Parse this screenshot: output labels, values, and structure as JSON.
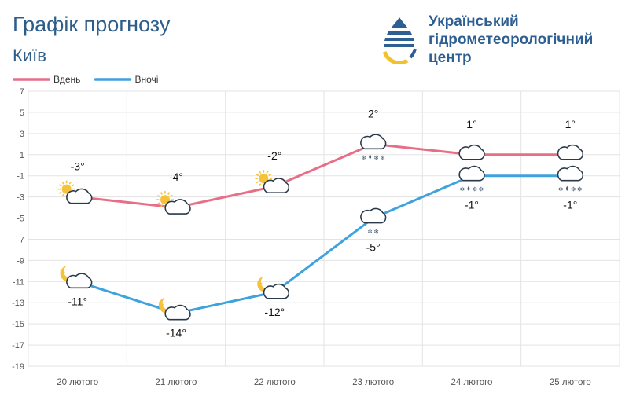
{
  "header": {
    "title": "Графік прогнозу",
    "city": "Київ",
    "org_lines": [
      "Український",
      "гідрометеорологічний",
      "центр"
    ]
  },
  "chart_data": {
    "type": "line",
    "categories": [
      "20 лютого",
      "21 лютого",
      "22 лютого",
      "23 лютого",
      "24 лютого",
      "25 лютого"
    ],
    "series": [
      {
        "name": "Вдень",
        "color": "#e86d86",
        "values": [
          -3,
          -4,
          -2,
          2,
          1,
          1
        ],
        "labels": [
          "-3°",
          "-4°",
          "-2°",
          "2°",
          "1°",
          "1°"
        ]
      },
      {
        "name": "Вночі",
        "color": "#3ea2dd",
        "values": [
          -11,
          -14,
          -12,
          -5,
          -1,
          -1
        ],
        "labels": [
          "-11°",
          "-14°",
          "-12°",
          "-5°",
          "-1°",
          "-1°"
        ]
      }
    ],
    "yticks": [
      7,
      5,
      3,
      1,
      -1,
      -3,
      -5,
      -7,
      -9,
      -11,
      -13,
      -15,
      -17,
      -19
    ],
    "ylim": [
      -19,
      7
    ],
    "grid": true,
    "legend_position": "top-left",
    "icons": {
      "day": [
        "sun-cloud-icon",
        "sun-cloud-icon",
        "sun-cloud-icon",
        "cloud-snow-rain-icon",
        "cloud-icon",
        "cloud-icon"
      ],
      "night": [
        "moon-cloud-icon",
        "moon-cloud-icon",
        "moon-cloud-icon",
        "cloud-snow-icon",
        "cloud-snow-rain-icon",
        "cloud-snow-rain-icon"
      ]
    }
  }
}
